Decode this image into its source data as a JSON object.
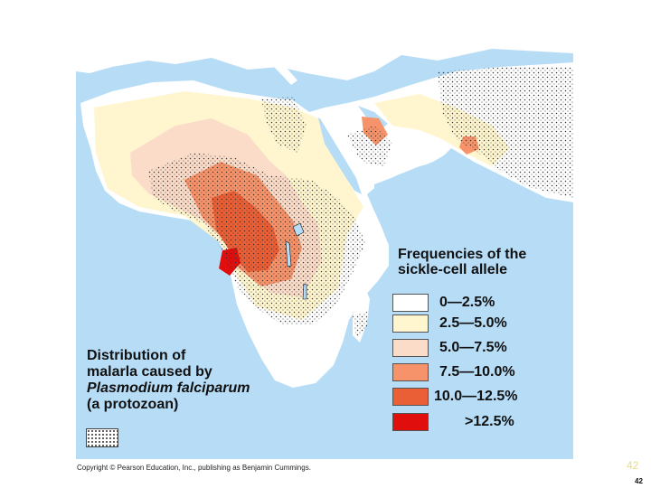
{
  "legend": {
    "title_line1": "Frequencies of the",
    "title_line2": "sickle-cell allele",
    "items": [
      {
        "label": "0—2.5%",
        "color": "#ffffff"
      },
      {
        "label": "2.5—5.0%",
        "color": "#fff6cf"
      },
      {
        "label": "5.0—7.5%",
        "color": "#fbdcc8"
      },
      {
        "label": "7.5—10.0%",
        "color": "#f6936a"
      },
      {
        "label": "10.0—12.5%",
        "color": "#ea5f35"
      },
      {
        "label": ">12.5%",
        "color": "#e10e0e"
      }
    ]
  },
  "distribution": {
    "line1": "Distribution of",
    "line2": "malarla caused by",
    "line3": "Plasmodium falciparum",
    "line4": "(a protozoan)"
  },
  "colors": {
    "ocean": "#b6dcf6",
    "land": "#ffffff",
    "malaria_stipple": "#333333"
  },
  "copyright": "Copyright © Pearson Education, Inc., publishing as Benjamin Cummings.",
  "page_number": "42"
}
